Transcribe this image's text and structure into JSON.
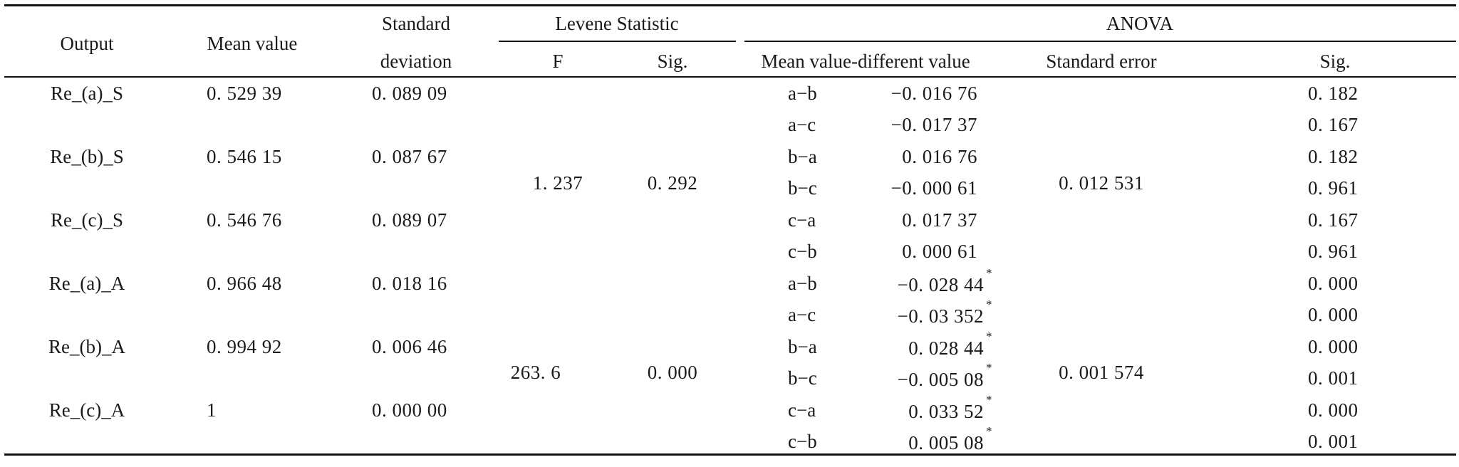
{
  "headers": {
    "output": "Output",
    "mean": "Mean value",
    "std_line1": "Standard",
    "std_line2": "deviation",
    "levene": "Levene Statistic",
    "levene_f": "F",
    "levene_sig": "Sig.",
    "anova": "ANOVA",
    "anova_diff": "Mean value-different value",
    "anova_se": "Standard error",
    "anova_sig": "Sig."
  },
  "groups": [
    {
      "levene_f": "1. 237",
      "levene_sig": "0. 292",
      "standard_error": "0. 012 531",
      "outputs": [
        {
          "name": "Re_(a)_S",
          "mean": "0. 529 39",
          "sd": "0. 089 09"
        },
        {
          "name": "Re_(b)_S",
          "mean": "0. 546 15",
          "sd": "0. 087 67"
        },
        {
          "name": "Re_(c)_S",
          "mean": "0. 546 76",
          "sd": "0. 089 07"
        }
      ],
      "comparisons": [
        {
          "pair": "a−b",
          "diff": "−0. 016 76",
          "star": "",
          "sig": "0. 182"
        },
        {
          "pair": "a−c",
          "diff": "−0. 017 37",
          "star": "",
          "sig": "0. 167"
        },
        {
          "pair": "b−a",
          "diff": "0. 016 76",
          "star": "",
          "sig": "0. 182"
        },
        {
          "pair": "b−c",
          "diff": "−0. 000 61",
          "star": "",
          "sig": "0. 961"
        },
        {
          "pair": "c−a",
          "diff": "0. 017 37",
          "star": "",
          "sig": "0. 167"
        },
        {
          "pair": "c−b",
          "diff": "0. 000 61",
          "star": "",
          "sig": "0. 961"
        }
      ]
    },
    {
      "levene_f": "263. 6",
      "levene_sig": "0. 000",
      "standard_error": "0. 001 574",
      "outputs": [
        {
          "name": "Re_(a)_A",
          "mean": "0. 966 48",
          "sd": "0. 018 16"
        },
        {
          "name": "Re_(b)_A",
          "mean": "0. 994 92",
          "sd": "0. 006 46"
        },
        {
          "name": "Re_(c)_A",
          "mean": "1",
          "sd": "0. 000 00"
        }
      ],
      "comparisons": [
        {
          "pair": "a−b",
          "diff": "−0. 028 44",
          "star": "*",
          "sig": "0. 000"
        },
        {
          "pair": "a−c",
          "diff": "−0. 03 352",
          "star": "*",
          "sig": "0. 000"
        },
        {
          "pair": "b−a",
          "diff": "0. 028 44",
          "star": "*",
          "sig": "0. 000"
        },
        {
          "pair": "b−c",
          "diff": "−0. 005 08",
          "star": "*",
          "sig": "0. 001"
        },
        {
          "pair": "c−a",
          "diff": "0. 033 52",
          "star": "*",
          "sig": "0. 000"
        },
        {
          "pair": "c−b",
          "diff": "0. 005 08",
          "star": "*",
          "sig": "0. 001"
        }
      ]
    }
  ]
}
